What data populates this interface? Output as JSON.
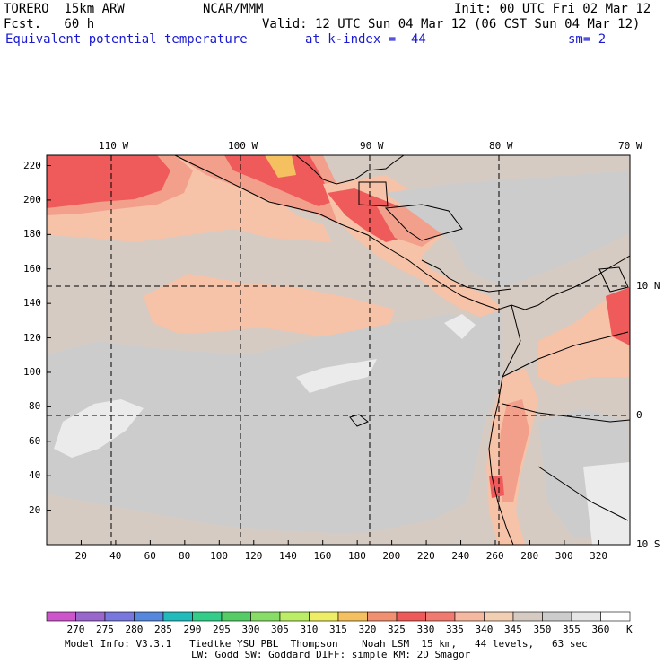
{
  "header": {
    "model": "TORERO  15km ARW",
    "center": "NCAR/MMM",
    "init": "Init: 00 UTC Fri 02 Mar 12",
    "fcst": "Fcst.   60 h",
    "valid": "Valid: 12 UTC Sun 04 Mar 12 (06 CST Sun 04 Mar 12)",
    "field": "Equivalent potential temperature",
    "kindex": "at k-index =  44",
    "smooth": "sm= 2"
  },
  "axes": {
    "y_ticks": [
      "220",
      "200",
      "180",
      "160",
      "140",
      "120",
      "100",
      "80",
      "60",
      "40",
      "20"
    ],
    "x_ticks": [
      "20",
      "40",
      "60",
      "80",
      "100",
      "120",
      "140",
      "160",
      "180",
      "200",
      "220",
      "240",
      "260",
      "280",
      "300",
      "320"
    ],
    "lon_labels": [
      "110 W",
      "100 W",
      "90 W",
      "80 W",
      "70 W"
    ],
    "lat_labels": [
      "10 N",
      "0",
      "10 S"
    ]
  },
  "colorbar": {
    "values": [
      "270",
      "275",
      "280",
      "285",
      "290",
      "295",
      "300",
      "305",
      "310",
      "315",
      "320",
      "325",
      "330",
      "335",
      "340",
      "345",
      "350",
      "355",
      "360"
    ],
    "unit": "K",
    "colors": [
      "#cc55cc",
      "#9966cc",
      "#7777dd",
      "#5588dd",
      "#22bbbb",
      "#33cc88",
      "#55cc66",
      "#88dd66",
      "#bbee66",
      "#eeee66",
      "#f5c060",
      "#f09070",
      "#ee5a5a",
      "#f07a70",
      "#f5b8a0",
      "#f2cfb3",
      "#d6cbc3",
      "#cccccc",
      "#e6e6e6",
      "#ffffff"
    ]
  },
  "footer": {
    "line1": "Model Info: V3.3.1   Tiedtke YSU PBL  Thompson    Noah LSM  15 km,   44 levels,   63 sec",
    "line2": "LW: Godd SW: Goddard DIFF: simple KM: 2D Smagor"
  },
  "map_colors": {
    "base": "#d6cbc3",
    "grey": "#cccccc",
    "light": "#ebebeb",
    "peach": "#f6c2a8",
    "salmon": "#f2a08c",
    "red": "#ef5a5a",
    "hot": "#f5c060",
    "land_line": "#000000"
  }
}
